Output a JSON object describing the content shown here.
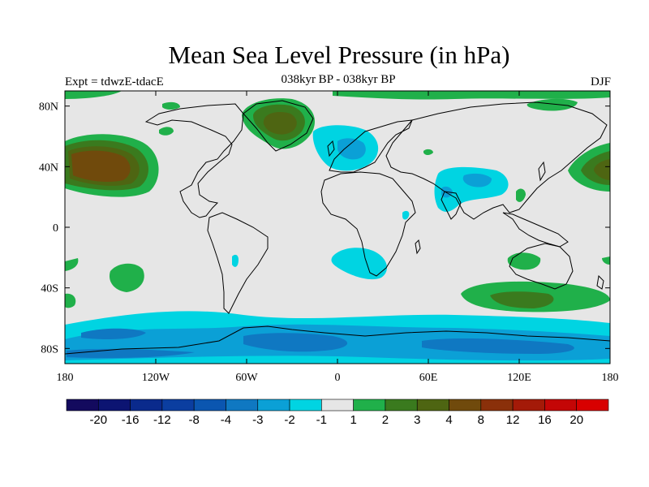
{
  "title": "Mean Sea Level Pressure (in hPa)",
  "subtitle": "038kyr BP - 038kyr BP",
  "left_label": "Expt = tdwzE-tdacE",
  "right_label": "DJF",
  "chart_data": {
    "type": "heatmap",
    "variable": "Mean Sea Level Pressure difference",
    "units": "hPa",
    "season": "DJF",
    "x_range": [
      -180,
      180
    ],
    "y_range": [
      -90,
      90
    ],
    "x_ticks": [
      {
        "value": -180,
        "label": "180"
      },
      {
        "value": -120,
        "label": "120W"
      },
      {
        "value": -60,
        "label": "60W"
      },
      {
        "value": 0,
        "label": "0"
      },
      {
        "value": 60,
        "label": "60E"
      },
      {
        "value": 120,
        "label": "120E"
      },
      {
        "value": 180,
        "label": "180"
      }
    ],
    "y_ticks": [
      {
        "value": 80,
        "label": "80N"
      },
      {
        "value": 40,
        "label": "40N"
      },
      {
        "value": 0,
        "label": "0"
      },
      {
        "value": -40,
        "label": "40S"
      },
      {
        "value": -80,
        "label": "80S"
      }
    ],
    "colorbar": {
      "labels": [
        "-20",
        "-16",
        "-12",
        "-8",
        "-4",
        "-3",
        "-2",
        "-1",
        "1",
        "2",
        "3",
        "4",
        "8",
        "12",
        "16",
        "20"
      ],
      "colors": [
        "#130a5e",
        "#0c1472",
        "#0a2a8c",
        "#0b3ea0",
        "#0b56b0",
        "#0f78c2",
        "#0ba0d6",
        "#00d4e2",
        "#e6e6e6",
        "#20b04a",
        "#3a7a1e",
        "#4e6512",
        "#704a0c",
        "#8a300a",
        "#a41a08",
        "#c40606",
        "#d80000"
      ]
    },
    "anomalies": [
      {
        "region": "North Pacific (Aleutian)",
        "lon": -160,
        "lat": 40,
        "level": "4 to 8",
        "sign": "positive"
      },
      {
        "region": "Far western North Pacific",
        "lon": 170,
        "lat": 40,
        "level": "3 to 4",
        "sign": "positive"
      },
      {
        "region": "Greenland",
        "lon": -40,
        "lat": 70,
        "level": "3 to 4",
        "sign": "positive"
      },
      {
        "region": "Arctic Siberia",
        "lon": 50,
        "lat": 80,
        "level": "1 to 2",
        "sign": "positive"
      },
      {
        "region": "North Atlantic / Scandinavia",
        "lon": 20,
        "lat": 60,
        "level": "-2 to -1",
        "sign": "negative"
      },
      {
        "region": "Central Asia",
        "lon": 90,
        "lat": 30,
        "level": "-3 to -2",
        "sign": "negative"
      },
      {
        "region": "South Atlantic",
        "lon": 10,
        "lat": -35,
        "level": "-2 to -1",
        "sign": "negative"
      },
      {
        "region": "South Pacific",
        "lon": -140,
        "lat": -30,
        "level": "1 to 2",
        "sign": "positive"
      },
      {
        "region": "Southern Indian Ocean / Australia south",
        "lon": 130,
        "lat": -45,
        "level": "3 to 4",
        "sign": "positive"
      },
      {
        "region": "Southern Ocean / Antarctica",
        "lon": 0,
        "lat": -75,
        "level": "-3 to -1",
        "sign": "negative"
      }
    ]
  }
}
